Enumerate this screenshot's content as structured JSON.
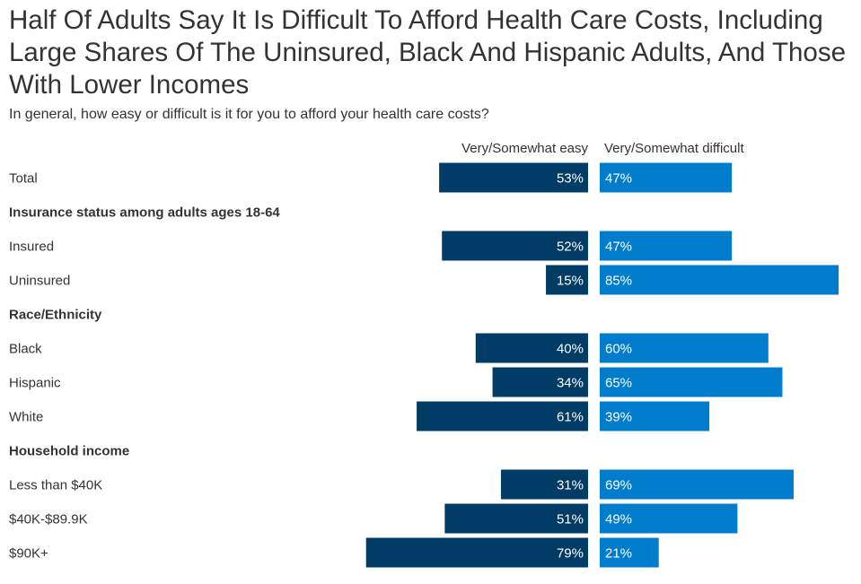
{
  "chart_data": {
    "type": "bar",
    "orientation": "horizontal",
    "layout": "diverging",
    "title": "Half Of Adults Say It Is Difficult To Afford Health Care Costs, Including Large Shares Of The Uninsured, Black And Hispanic Adults, And Those With Lower Incomes",
    "subtitle": "In general, how easy or difficult is it for you to afford your health care costs?",
    "unit": "%",
    "series": [
      {
        "name": "Very/Somewhat easy",
        "color": "#003c66"
      },
      {
        "name": "Very/Somewhat difficult",
        "color": "#007ccc"
      }
    ],
    "rows": [
      {
        "label": "Total",
        "type": "data",
        "easy": 53,
        "difficult": 47
      },
      {
        "label": "Insurance status among adults ages 18-64",
        "type": "header"
      },
      {
        "label": "Insured",
        "type": "data",
        "easy": 52,
        "difficult": 47
      },
      {
        "label": "Uninsured",
        "type": "data",
        "easy": 15,
        "difficult": 85
      },
      {
        "label": "Race/Ethnicity",
        "type": "header"
      },
      {
        "label": "Black",
        "type": "data",
        "easy": 40,
        "difficult": 60
      },
      {
        "label": "Hispanic",
        "type": "data",
        "easy": 34,
        "difficult": 65
      },
      {
        "label": "White",
        "type": "data",
        "easy": 61,
        "difficult": 39
      },
      {
        "label": "Household income",
        "type": "header"
      },
      {
        "label": "Less than $40K",
        "type": "data",
        "easy": 31,
        "difficult": 69
      },
      {
        "label": "$40K-$89.9K",
        "type": "data",
        "easy": 51,
        "difficult": 49
      },
      {
        "label": "$90K+",
        "type": "data",
        "easy": 79,
        "difficult": 21
      }
    ]
  }
}
